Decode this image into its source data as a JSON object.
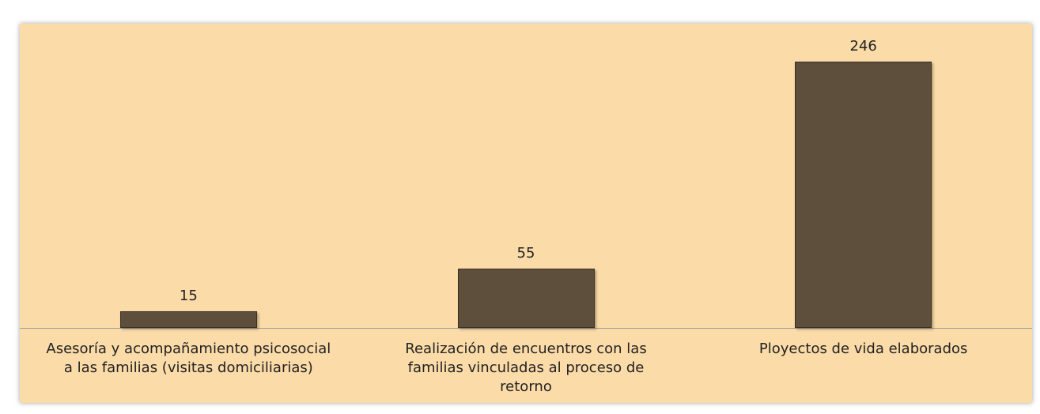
{
  "chart_data": {
    "type": "bar",
    "categories": [
      "Asesoría y acompañamiento psicosocial a las familias (visitas domiciliarias)",
      "Realización de encuentros con las familias vinculadas al proceso de retorno",
      "Ployectos de vida elaborados"
    ],
    "values": [
      15,
      55,
      246
    ],
    "color": "#5e4f3c"
  }
}
